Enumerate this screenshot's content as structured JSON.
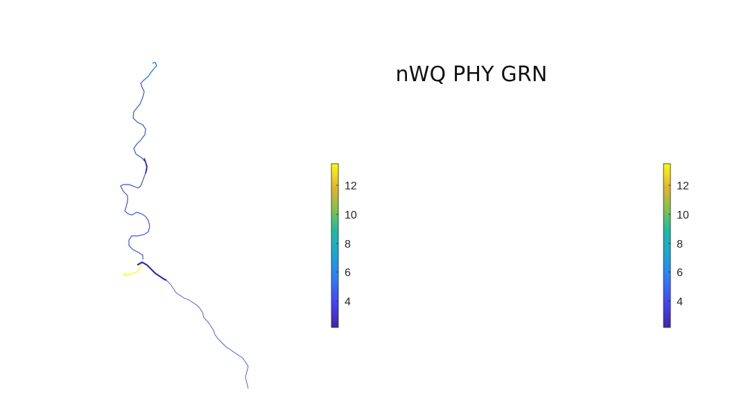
{
  "figure": {
    "title": "nWQ PHY GRN",
    "panels": [
      {
        "name": "left",
        "colorbar": {
          "min": 2,
          "max": 13.6,
          "ticks": [
            "4",
            "6",
            "8",
            "10",
            "12"
          ],
          "colormap": "parula"
        }
      },
      {
        "name": "right",
        "colorbar": {
          "min": 2,
          "max": 13.6,
          "ticks": [
            "4",
            "6",
            "8",
            "10",
            "12"
          ],
          "colormap": "parula"
        }
      }
    ],
    "colors": {
      "low": "#3e26a8",
      "mid_blue": "#2c7ef7",
      "high": "#f9fb0e",
      "river_main": "#3b4fe0",
      "river_dark": "#2a2ab8",
      "tributary": "#f9fb0e"
    }
  }
}
